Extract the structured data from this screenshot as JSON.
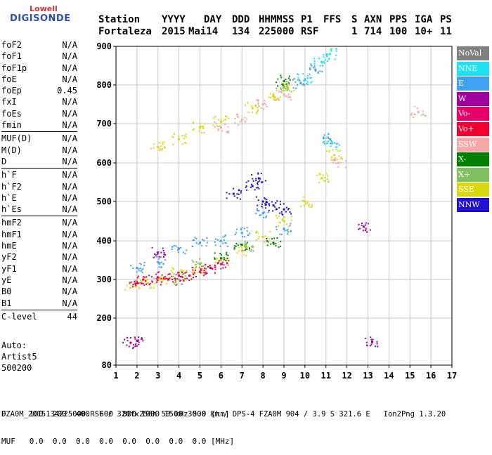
{
  "logo": {
    "top": "Lowell",
    "main": "DIGISONDE"
  },
  "header": {
    "labels": [
      "Station",
      "YYYY",
      "DAY",
      "DDD",
      "HHMMSS",
      "P1",
      "FFS",
      "S",
      "AXN",
      "PPS",
      "IGA",
      "PS"
    ],
    "values": [
      "Fortaleza",
      "2015",
      "Mai14",
      "134",
      "225000",
      "RSF",
      "",
      "1",
      "714",
      "100",
      "10+",
      "11"
    ]
  },
  "params": [
    {
      "group": 1,
      "items": [
        {
          "k": "foF2",
          "v": "N/A"
        },
        {
          "k": "foF1",
          "v": "N/A"
        },
        {
          "k": "foF1p",
          "v": "N/A"
        },
        {
          "k": "foE",
          "v": "N/A"
        },
        {
          "k": "foEp",
          "v": "0.45"
        },
        {
          "k": "fxI",
          "v": "N/A"
        },
        {
          "k": "foEs",
          "v": "N/A"
        },
        {
          "k": "fmin",
          "v": "N/A"
        }
      ]
    },
    {
      "group": 2,
      "items": [
        {
          "k": "MUF(D)",
          "v": "N/A"
        },
        {
          "k": "M(D)",
          "v": "N/A"
        },
        {
          "k": "D",
          "v": "N/A"
        }
      ]
    },
    {
      "group": 3,
      "items": [
        {
          "k": "h`F",
          "v": "N/A"
        },
        {
          "k": "h`F2",
          "v": "N/A"
        },
        {
          "k": "h`E",
          "v": "N/A"
        },
        {
          "k": "h`Es",
          "v": "N/A"
        }
      ]
    },
    {
      "group": 4,
      "items": [
        {
          "k": "hmF2",
          "v": "N/A"
        },
        {
          "k": "hmF1",
          "v": "N/A"
        },
        {
          "k": "hmE",
          "v": "N/A"
        },
        {
          "k": "yF2",
          "v": "N/A"
        },
        {
          "k": "yF1",
          "v": "N/A"
        },
        {
          "k": "yE",
          "v": "N/A"
        },
        {
          "k": "B0",
          "v": "N/A"
        },
        {
          "k": "B1",
          "v": "N/A"
        }
      ]
    },
    {
      "group": 5,
      "items": [
        {
          "k": "C-level",
          "v": "44"
        }
      ]
    }
  ],
  "auto": [
    "Auto:",
    "Artist5",
    "500200"
  ],
  "bottom": {
    "d_row": "D     100  200  400  600  800 1000 1500 3000 [km]",
    "muf_row": "MUF   0.0  0.0  0.0  0.0  0.0  0.0  0.0  0.0 [MHz]"
  },
  "footer": "FZA0M_2015134225000.RSF / 320fx256h 50 kHz 5.0 km / DPS-4 FZA0M 904 / 3.9 S 321.6 E   Ion2Png 1.3.20",
  "legend": [
    {
      "label": "NoVal",
      "color": "#808080"
    },
    {
      "label": "NNE",
      "color": "#1ee0f0"
    },
    {
      "label": "E",
      "color": "#40a0f0"
    },
    {
      "label": "W",
      "color": "#a000a0"
    },
    {
      "label": "Vo-",
      "color": "#e8006a"
    },
    {
      "label": "Vo+",
      "color": "#f00030"
    },
    {
      "label": "SSW",
      "color": "#f4a8a8"
    },
    {
      "label": "X-",
      "color": "#008000"
    },
    {
      "label": "X+",
      "color": "#80c060"
    },
    {
      "label": "SSE",
      "color": "#d8d810"
    },
    {
      "label": "NNW",
      "color": "#2010d0"
    }
  ],
  "chart_data": {
    "type": "scatter",
    "title": "",
    "xlabel": "",
    "ylabel": "",
    "xlim": [
      1,
      17
    ],
    "ylim": [
      80,
      900
    ],
    "xticks": [
      "1",
      "2",
      "3",
      "4",
      "5",
      "6",
      "7",
      "8",
      "9",
      "10",
      "11",
      "12",
      "13",
      "14",
      "15",
      "16",
      "17"
    ],
    "yticks": [
      "80",
      "200",
      "300",
      "400",
      "500",
      "600",
      "700",
      "800",
      "900"
    ],
    "ytick_values": [
      80,
      200,
      300,
      400,
      500,
      600,
      700,
      800,
      900
    ],
    "grid": true,
    "scale": "frequency MHz vs virtual height km",
    "series": [
      {
        "name": "SSE",
        "color": "#d8d810",
        "points": [
          [
            1.8,
            285
          ],
          [
            2.5,
            290
          ],
          [
            3.2,
            300
          ],
          [
            4,
            315
          ],
          [
            5,
            330
          ],
          [
            6,
            350
          ],
          [
            7,
            375
          ],
          [
            8,
            410
          ],
          [
            9,
            450
          ],
          [
            10,
            500
          ],
          [
            10.8,
            560
          ],
          [
            11.4,
            620
          ],
          [
            3,
            640
          ],
          [
            4,
            660
          ],
          [
            5,
            690
          ],
          [
            6,
            705
          ],
          [
            7.5,
            740
          ],
          [
            8.5,
            770
          ],
          [
            9.2,
            790
          ]
        ]
      },
      {
        "name": "E",
        "color": "#40a0f0",
        "points": [
          [
            2,
            330
          ],
          [
            3,
            345
          ],
          [
            4,
            380
          ],
          [
            5,
            395
          ],
          [
            6,
            400
          ],
          [
            7,
            420
          ],
          [
            8,
            470
          ],
          [
            9,
            430
          ],
          [
            11.2,
            660
          ],
          [
            9.8,
            805
          ],
          [
            10.5,
            840
          ]
        ]
      },
      {
        "name": "NNE",
        "color": "#1ee0f0",
        "points": [
          [
            11.3,
            650
          ],
          [
            10,
            815
          ],
          [
            10.8,
            860
          ],
          [
            11.2,
            880
          ]
        ]
      },
      {
        "name": "NNW",
        "color": "#2010d0",
        "points": [
          [
            7.5,
            540
          ],
          [
            8,
            500
          ],
          [
            8.5,
            490
          ],
          [
            9,
            480
          ],
          [
            7.8,
            560
          ],
          [
            6.6,
            520
          ]
        ]
      },
      {
        "name": "Vo-",
        "color": "#e8006a",
        "points": [
          [
            2,
            290
          ],
          [
            3,
            305
          ],
          [
            4,
            310
          ],
          [
            5,
            320
          ],
          [
            6,
            340
          ]
        ]
      },
      {
        "name": "Vo+",
        "color": "#f00030",
        "points": [
          [
            2.3,
            300
          ],
          [
            3.5,
            300
          ],
          [
            4.5,
            310
          ],
          [
            5.5,
            330
          ]
        ]
      },
      {
        "name": "SSW",
        "color": "#f4a8a8",
        "points": [
          [
            6,
            690
          ],
          [
            7,
            710
          ],
          [
            8,
            750
          ],
          [
            9,
            775
          ],
          [
            11.6,
            600
          ],
          [
            15.4,
            730
          ]
        ]
      },
      {
        "name": "W",
        "color": "#a000a0",
        "points": [
          [
            1.7,
            137
          ],
          [
            2,
            142
          ],
          [
            12.8,
            436
          ],
          [
            13.2,
            140
          ],
          [
            3,
            370
          ]
        ]
      },
      {
        "name": "X-",
        "color": "#008000",
        "points": [
          [
            6,
            355
          ],
          [
            7,
            390
          ],
          [
            8.5,
            395
          ],
          [
            9,
            810
          ]
        ]
      },
      {
        "name": "X+",
        "color": "#80c060",
        "points": [
          [
            5,
            340
          ],
          [
            7.2,
            385
          ],
          [
            9,
            795
          ],
          [
            4,
            300
          ]
        ]
      }
    ]
  }
}
